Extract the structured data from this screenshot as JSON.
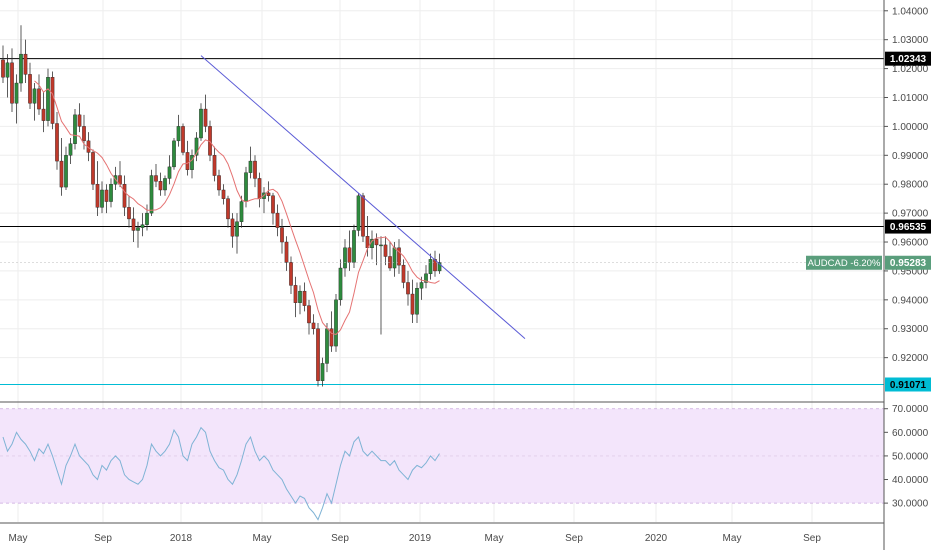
{
  "chart_data": [
    {
      "type": "candlestick",
      "symbol": "AUDCAD",
      "change_label": "AUDCAD -6.20%",
      "last_price": "0.95283",
      "accent_color": "#5a9e7c",
      "up_color": "#2e8b3e",
      "down_color": "#c0392b",
      "ylim": [
        0.905,
        1.042
      ],
      "y_ticks": [
        "1.04000",
        "1.03000",
        "1.02000",
        "1.01000",
        "1.00000",
        "0.99000",
        "0.98000",
        "0.97000",
        "0.96000",
        "0.95000",
        "0.94000",
        "0.93000",
        "0.92000"
      ],
      "x_ticks": [
        "May",
        "Sep",
        "2018",
        "May",
        "Sep",
        "2019",
        "May",
        "Sep",
        "2020",
        "May",
        "Sep"
      ],
      "levels": [
        {
          "label": "1.02343",
          "value": 1.02343,
          "color": "#000000"
        },
        {
          "label": "0.96535",
          "value": 0.96535,
          "color": "#000000"
        },
        {
          "label": "0.91071",
          "value": 0.91071,
          "color": "#00bcd4"
        }
      ],
      "trendline": {
        "from": {
          "week": 44,
          "value": 1.0245
        },
        "to": {
          "week": 116,
          "value": 0.9266
        },
        "color": "#5b5bd6"
      },
      "moving_average_color": "#e57373",
      "candles": [
        [
          1.023,
          1.028,
          1.015,
          1.017
        ],
        [
          1.017,
          1.025,
          1.01,
          1.022
        ],
        [
          1.022,
          1.027,
          1.005,
          1.008
        ],
        [
          1.008,
          1.018,
          1.001,
          1.015
        ],
        [
          1.015,
          1.035,
          1.012,
          1.025
        ],
        [
          1.025,
          1.03,
          1.015,
          1.018
        ],
        [
          1.018,
          1.022,
          1.006,
          1.008
        ],
        [
          1.008,
          1.015,
          1.002,
          1.013
        ],
        [
          1.013,
          1.018,
          1.004,
          1.006
        ],
        [
          1.006,
          1.012,
          0.998,
          1.002
        ],
        [
          1.002,
          1.02,
          1.0,
          1.017
        ],
        [
          1.017,
          1.019,
          0.999,
          1.001
        ],
        [
          1.001,
          1.005,
          0.985,
          0.988
        ],
        [
          0.988,
          0.996,
          0.976,
          0.979
        ],
        [
          0.979,
          0.993,
          0.978,
          0.99
        ],
        [
          0.99,
          0.996,
          0.987,
          0.994
        ],
        [
          0.994,
          1.006,
          0.992,
          1.004
        ],
        [
          1.004,
          1.008,
          0.998,
          1.0
        ],
        [
          1.0,
          1.004,
          0.992,
          0.995
        ],
        [
          0.995,
          0.998,
          0.988,
          0.991
        ],
        [
          0.991,
          0.992,
          0.978,
          0.98
        ],
        [
          0.98,
          0.988,
          0.969,
          0.972
        ],
        [
          0.972,
          0.981,
          0.97,
          0.978
        ],
        [
          0.978,
          0.98,
          0.97,
          0.974
        ],
        [
          0.974,
          0.982,
          0.972,
          0.98
        ],
        [
          0.98,
          0.986,
          0.978,
          0.983
        ],
        [
          0.983,
          0.988,
          0.979,
          0.98
        ],
        [
          0.98,
          0.983,
          0.969,
          0.972
        ],
        [
          0.972,
          0.976,
          0.965,
          0.968
        ],
        [
          0.968,
          0.972,
          0.96,
          0.964
        ],
        [
          0.964,
          0.967,
          0.958,
          0.965
        ],
        [
          0.965,
          0.97,
          0.962,
          0.966
        ],
        [
          0.966,
          0.973,
          0.964,
          0.97
        ],
        [
          0.97,
          0.985,
          0.969,
          0.983
        ],
        [
          0.983,
          0.987,
          0.979,
          0.981
        ],
        [
          0.981,
          0.984,
          0.976,
          0.978
        ],
        [
          0.978,
          0.983,
          0.976,
          0.982
        ],
        [
          0.982,
          0.99,
          0.98,
          0.986
        ],
        [
          0.986,
          0.996,
          0.985,
          0.995
        ],
        [
          0.995,
          1.004,
          0.993,
          1.0
        ],
        [
          1.0,
          1.001,
          0.99,
          0.991
        ],
        [
          0.991,
          0.995,
          0.983,
          0.985
        ],
        [
          0.985,
          0.992,
          0.982,
          0.99
        ],
        [
          0.99,
          0.998,
          0.988,
          0.996
        ],
        [
          0.996,
          1.008,
          0.995,
          1.006
        ],
        [
          1.006,
          1.011,
          0.998,
          1.0
        ],
        [
          1.0,
          1.002,
          0.988,
          0.99
        ],
        [
          0.99,
          0.993,
          0.981,
          0.983
        ],
        [
          0.983,
          0.985,
          0.976,
          0.978
        ],
        [
          0.978,
          0.98,
          0.973,
          0.975
        ],
        [
          0.975,
          0.976,
          0.965,
          0.968
        ],
        [
          0.968,
          0.97,
          0.958,
          0.962
        ],
        [
          0.962,
          0.97,
          0.956,
          0.967
        ],
        [
          0.967,
          0.976,
          0.965,
          0.974
        ],
        [
          0.974,
          0.986,
          0.972,
          0.984
        ],
        [
          0.984,
          0.993,
          0.982,
          0.988
        ],
        [
          0.988,
          0.99,
          0.979,
          0.982
        ],
        [
          0.982,
          0.984,
          0.972,
          0.975
        ],
        [
          0.975,
          0.979,
          0.97,
          0.977
        ],
        [
          0.977,
          0.981,
          0.974,
          0.976
        ],
        [
          0.976,
          0.977,
          0.966,
          0.97
        ],
        [
          0.97,
          0.973,
          0.962,
          0.965
        ],
        [
          0.965,
          0.968,
          0.956,
          0.96
        ],
        [
          0.96,
          0.962,
          0.95,
          0.953
        ],
        [
          0.953,
          0.955,
          0.942,
          0.945
        ],
        [
          0.945,
          0.948,
          0.934,
          0.939
        ],
        [
          0.939,
          0.945,
          0.935,
          0.943
        ],
        [
          0.943,
          0.946,
          0.936,
          0.938
        ],
        [
          0.938,
          0.94,
          0.928,
          0.932
        ],
        [
          0.932,
          0.935,
          0.928,
          0.93
        ],
        [
          0.93,
          0.932,
          0.91,
          0.912
        ],
        [
          0.912,
          0.92,
          0.91,
          0.918
        ],
        [
          0.918,
          0.932,
          0.915,
          0.93
        ],
        [
          0.93,
          0.936,
          0.922,
          0.924
        ],
        [
          0.924,
          0.942,
          0.922,
          0.94
        ],
        [
          0.94,
          0.954,
          0.938,
          0.951
        ],
        [
          0.951,
          0.961,
          0.948,
          0.958
        ],
        [
          0.958,
          0.964,
          0.95,
          0.953
        ],
        [
          0.953,
          0.966,
          0.951,
          0.964
        ],
        [
          0.964,
          0.977,
          0.962,
          0.976
        ],
        [
          0.976,
          0.977,
          0.96,
          0.962
        ],
        [
          0.962,
          0.969,
          0.955,
          0.958
        ],
        [
          0.958,
          0.964,
          0.954,
          0.961
        ],
        [
          0.961,
          0.963,
          0.952,
          0.959
        ],
        [
          0.959,
          0.962,
          0.928,
          0.959
        ],
        [
          0.959,
          0.962,
          0.952,
          0.955
        ],
        [
          0.955,
          0.96,
          0.95,
          0.951
        ],
        [
          0.951,
          0.96,
          0.948,
          0.958
        ],
        [
          0.958,
          0.961,
          0.949,
          0.952
        ],
        [
          0.952,
          0.954,
          0.944,
          0.946
        ],
        [
          0.946,
          0.95,
          0.938,
          0.942
        ],
        [
          0.942,
          0.947,
          0.932,
          0.935
        ],
        [
          0.935,
          0.946,
          0.932,
          0.944
        ],
        [
          0.944,
          0.948,
          0.94,
          0.946
        ],
        [
          0.946,
          0.952,
          0.944,
          0.949
        ],
        [
          0.949,
          0.956,
          0.947,
          0.954
        ],
        [
          0.954,
          0.957,
          0.948,
          0.95
        ],
        [
          0.95,
          0.956,
          0.949,
          0.953
        ]
      ],
      "rsi": {
        "ylim": [
          22,
          72
        ],
        "band": [
          30,
          70
        ],
        "y_ticks": [
          "70.0000",
          "60.0000",
          "50.0000",
          "40.0000",
          "30.0000"
        ],
        "band_color": "#f3e5fb",
        "line_color": "#7fb3d5",
        "values": [
          58,
          52,
          55,
          60,
          57,
          55,
          52,
          48,
          53,
          51,
          55,
          50,
          44,
          38,
          46,
          50,
          55,
          50,
          48,
          46,
          42,
          40,
          46,
          44,
          48,
          50,
          48,
          42,
          40,
          39,
          38,
          40,
          46,
          55,
          52,
          50,
          52,
          55,
          61,
          58,
          50,
          48,
          55,
          58,
          62,
          60,
          52,
          48,
          45,
          44,
          40,
          38,
          42,
          48,
          55,
          58,
          52,
          48,
          50,
          48,
          44,
          42,
          40,
          36,
          33,
          30,
          33,
          32,
          28,
          26,
          23,
          28,
          34,
          30,
          38,
          46,
          52,
          50,
          56,
          58,
          52,
          50,
          52,
          50,
          48,
          48,
          46,
          48,
          44,
          42,
          40,
          44,
          46,
          45,
          47,
          50,
          48,
          51
        ]
      }
    }
  ]
}
